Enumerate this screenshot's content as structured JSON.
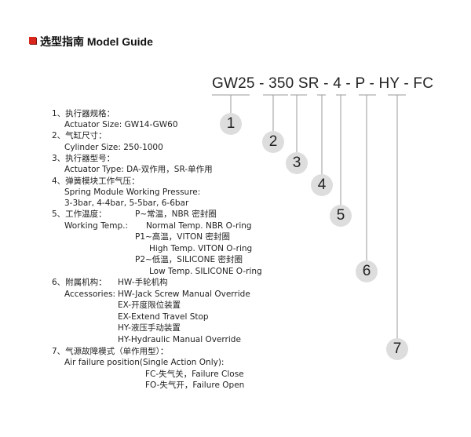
{
  "header": {
    "title": "选型指南  Model Guide",
    "accent_color": "#d8261c"
  },
  "model_code": "GW25 - 350 SR - 4 - P - HY - FC",
  "callouts": [
    "1",
    "2",
    "3",
    "4",
    "5",
    "6",
    "7"
  ],
  "guide": [
    {
      "text": "1、执行器规格："
    },
    {
      "text": "Actuator Size: GW14-GW60"
    },
    {
      "text": "2、气缸尺寸："
    },
    {
      "text": "Cylinder Size: 250-1000"
    },
    {
      "text": "3、执行器型号："
    },
    {
      "text": "Actuator Type: DA-双作用，SR-单作用"
    },
    {
      "text": "4、弹簧模块工作气压："
    },
    {
      "text": "Spring Module Working Pressure:"
    },
    {
      "text": "3-3bar, 4-4bar, 5-5bar, 6-6bar"
    },
    {
      "text": "5、工作温度："
    },
    {
      "text": "P~常温，NBR 密封圈"
    },
    {
      "text": "Working Temp.:"
    },
    {
      "text": "Normal Temp. NBR O-ring"
    },
    {
      "text": "P1~高温，VITON 密封圈"
    },
    {
      "text": "High Temp. VITON O-ring"
    },
    {
      "text": "P2~低温，SILICONE 密封圈"
    },
    {
      "text": "Low Temp. SILICONE O-ring"
    },
    {
      "text": "6、附属机构："
    },
    {
      "text": "HW-手轮机构"
    },
    {
      "text": "Accessories:"
    },
    {
      "text": "HW-Jack Screw Manual Override"
    },
    {
      "text": "EX-开度限位装置"
    },
    {
      "text": "EX-Extend Travel Stop"
    },
    {
      "text": "HY-液压手动装置"
    },
    {
      "text": "HY-Hydraulic Manual Override"
    },
    {
      "text": "7、气源故障模式（单作用型）："
    },
    {
      "text": "Air failure position(Single Action Only):"
    },
    {
      "text": "FC-失气关，Failure Close"
    },
    {
      "text": "FO-失气开，Failure Open"
    }
  ]
}
